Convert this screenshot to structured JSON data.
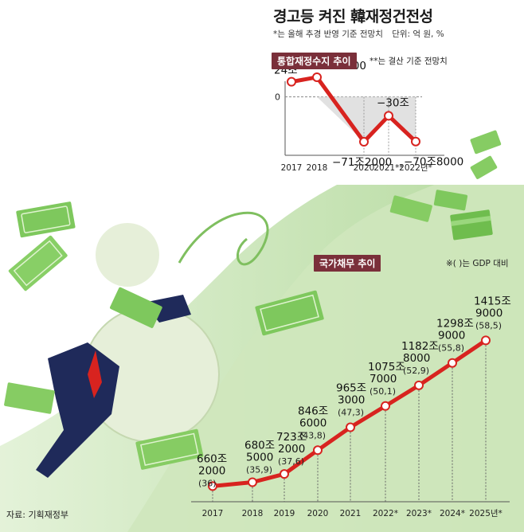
{
  "header": {
    "title": "경고등 켜진 韓재정건전성",
    "note": "*는 올해 추경 반영 기준 전망치",
    "unit": "단위: 억 원, %"
  },
  "balance_panel": {
    "label": "통합재정수지 추이",
    "note": "**는 결산 기준 전망치"
  },
  "debt_panel": {
    "label": "국가채무 추이",
    "note": "※( )는 GDP 대비"
  },
  "source": "자료: 기획재정부",
  "colors": {
    "line": "#d8231f",
    "label_bg": "#7a2f3a",
    "green": "#b9dca3",
    "shade": "#d9d9d9"
  },
  "chart_data": [
    {
      "type": "line",
      "title": "통합재정수지 추이",
      "categories": [
        "2017",
        "2018",
        "2020",
        "2021**",
        "2022년*"
      ],
      "values": [
        240000,
        312000,
        -712000,
        -300000,
        -708000
      ],
      "data_labels": [
        "24조",
        "31조2000",
        "−71조2000",
        "−30조",
        "−70조8000"
      ],
      "y_tick_labels": [
        "0"
      ],
      "ylim": [
        -800000,
        400000
      ],
      "grid": false
    },
    {
      "type": "line",
      "title": "국가채무 추이",
      "categories": [
        "2017",
        "2018",
        "2019",
        "2020",
        "2021",
        "2022*",
        "2023*",
        "2024*",
        "2025년*"
      ],
      "values": [
        6602000,
        6805000,
        7232000,
        8466000,
        9653000,
        10757000,
        11828000,
        12989000,
        14159000
      ],
      "gdp_ratio": [
        36,
        35.9,
        37.6,
        43.8,
        47.3,
        50.1,
        52.9,
        55.8,
        58.5
      ],
      "data_labels": [
        [
          "660조",
          "2000",
          "(36)"
        ],
        [
          "680조",
          "5000",
          "(35,9)"
        ],
        [
          "723조",
          "2000",
          "(37,6)"
        ],
        [
          "846조",
          "6000",
          "(43,8)"
        ],
        [
          "965조",
          "3000",
          "(47,3)"
        ],
        [
          "1075조",
          "7000",
          "(50,1)"
        ],
        [
          "1182조",
          "8000",
          "(52,9)"
        ],
        [
          "1298조",
          "9000",
          "(55,8)"
        ],
        [
          "1415조",
          "9000",
          "(58,5)"
        ]
      ],
      "ylim": [
        6000000,
        15000000
      ],
      "grid": false
    }
  ]
}
